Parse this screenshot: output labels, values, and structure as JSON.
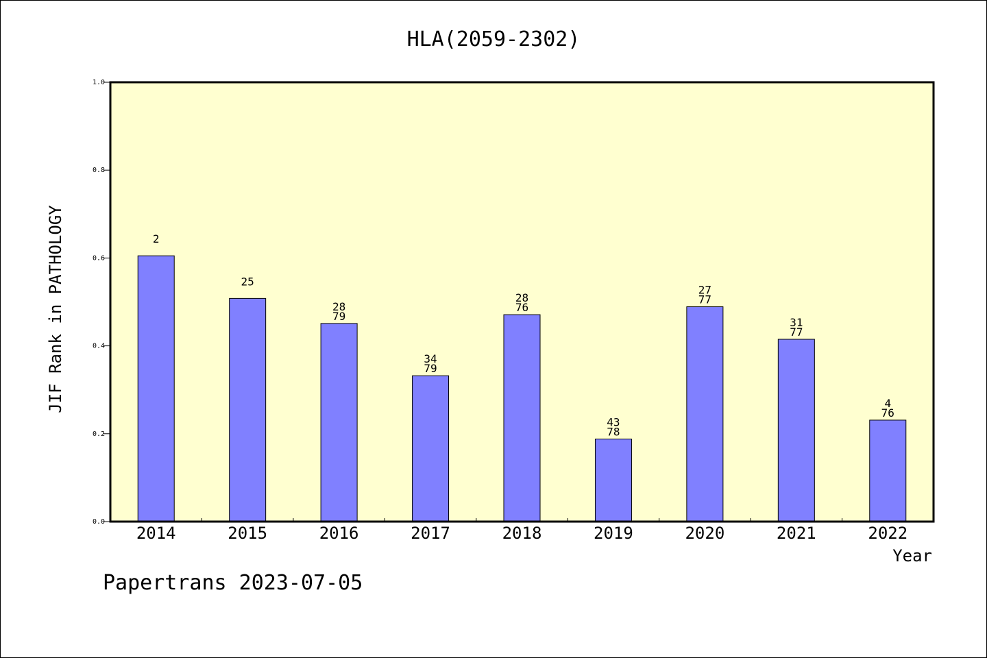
{
  "chart_data": {
    "type": "bar",
    "title": "HLA(2059-2302)",
    "xlabel": "Year",
    "ylabel": "JIF Rank in PATHOLOGY",
    "ylim": [
      0,
      1.0
    ],
    "yticks": [
      "0.0",
      "0.2",
      "0.4",
      "0.6",
      "0.8",
      "1.0"
    ],
    "categories": [
      "2014",
      "2015",
      "2016",
      "2017",
      "2018",
      "2019",
      "2020",
      "2021",
      "2022"
    ],
    "values": [
      0.605,
      0.508,
      0.451,
      0.332,
      0.471,
      0.188,
      0.489,
      0.415,
      0.231
    ],
    "labels": [
      [
        "2"
      ],
      [
        "25"
      ],
      [
        "28",
        "79"
      ],
      [
        "34",
        "79"
      ],
      [
        "28",
        "76"
      ],
      [
        "43",
        "78"
      ],
      [
        "27",
        "77"
      ],
      [
        "31",
        "77"
      ],
      [
        "4",
        "76"
      ]
    ],
    "colors": {
      "bar": "#8080ff",
      "plot_background": "#ffffd0",
      "axis": "#000000"
    },
    "grid": false
  },
  "footer": {
    "text": "Papertrans 2023-07-05"
  }
}
